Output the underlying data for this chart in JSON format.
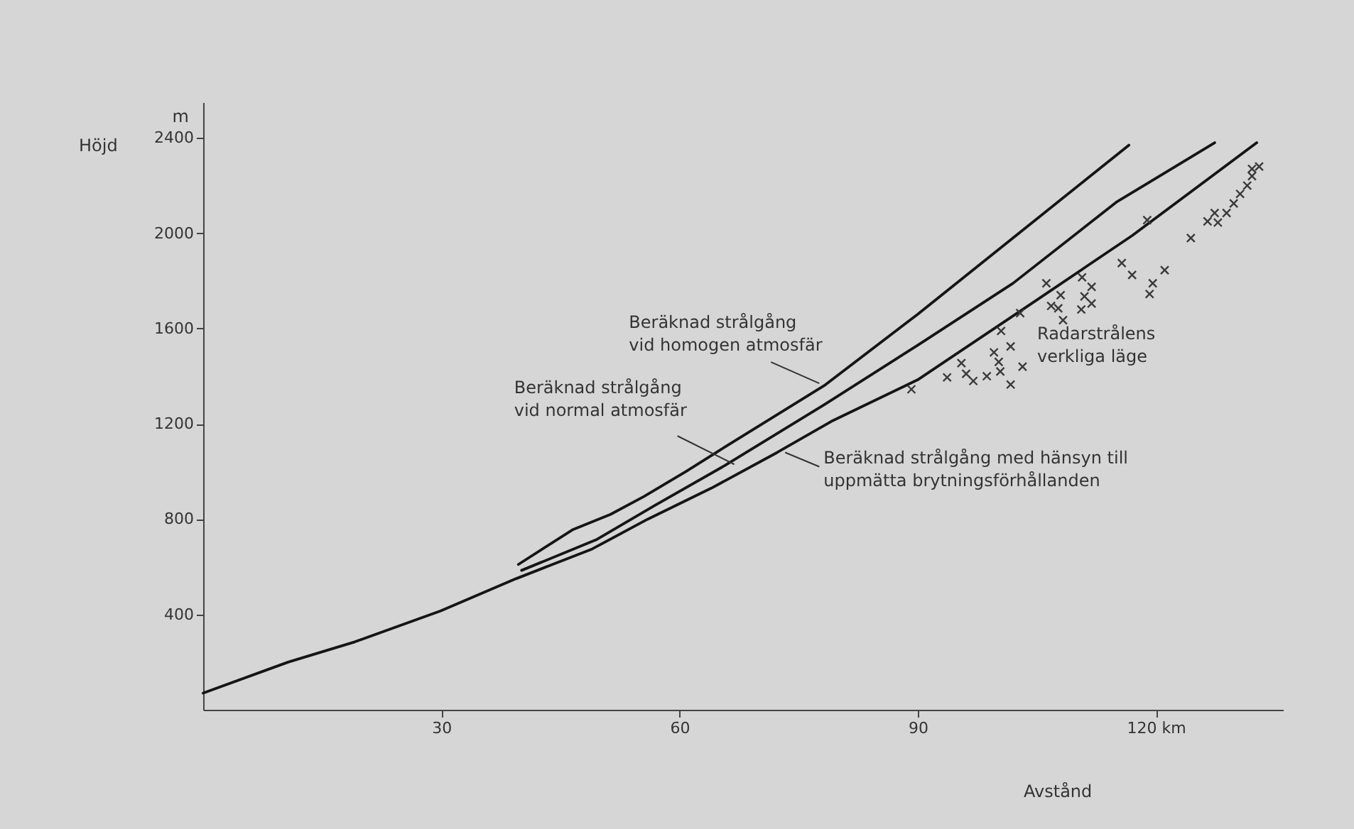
{
  "chart_data": {
    "type": "line",
    "xlabel": "Avstånd",
    "ylabel": "Höjd",
    "xlim": [
      0,
      136
    ],
    "ylim": [
      0,
      2550
    ],
    "xticks": [
      30,
      60,
      90,
      {
        "value": 120,
        "label": "120  km"
      }
    ],
    "yticks": [
      400,
      800,
      1200,
      1600,
      2000,
      2400
    ],
    "grid": false,
    "line_style": "solid",
    "series": [
      {
        "color": "#151515",
        "x": [
          39.7,
          46.5,
          51.3,
          55.5,
          60.8,
          65.1,
          78.2,
          90,
          102,
          116.6
        ],
        "values": [
          610,
          755,
          820,
          895,
          1000,
          1090,
          1360,
          1660,
          1980,
          2370
        ]
      },
      {
        "color": "#151515",
        "x": [
          40.1,
          49.6,
          57,
          65.7,
          78.2,
          90,
          102,
          115,
          127.4
        ],
        "values": [
          585,
          715,
          860,
          1025,
          1280,
          1530,
          1790,
          2130,
          2380
        ]
      },
      {
        "color": "#151515",
        "x": [
          0,
          10.7,
          19.1,
          29.9,
          39.4,
          44,
          49,
          56,
          64,
          72.3,
          79.1,
          90,
          105,
          117,
          132.7
        ],
        "values": [
          70,
          200,
          285,
          415,
          550,
          610,
          675,
          800,
          930,
          1080,
          1210,
          1385,
          1720,
          1990,
          2380
        ]
      },
      {
        "type": "scatter",
        "marker": "cross",
        "color": "#3a3a3a",
        "x": [
          89.2,
          93.7,
          95.5,
          96.1,
          97,
          98.7,
          99.6,
          100.2,
          100.4,
          100.5,
          101.7,
          101.7,
          103.2,
          102.9,
          106.2,
          106.8,
          107.7,
          108,
          108.3,
          110.7,
          111,
          111.9,
          111.9,
          110.6,
          115.7,
          117,
          121.1,
          119.6,
          119.2,
          118.9,
          124.4,
          126.5,
          127.8,
          127.4,
          128.9,
          129.8,
          130.6,
          131.5,
          132.1,
          132.1,
          133
        ],
        "values": [
          1345,
          1395,
          1455,
          1410,
          1380,
          1400,
          1500,
          1460,
          1420,
          1590,
          1525,
          1365,
          1440,
          1665,
          1790,
          1695,
          1685,
          1740,
          1635,
          1815,
          1735,
          1775,
          1705,
          1680,
          1875,
          1825,
          1845,
          1790,
          1745,
          2055,
          1980,
          2050,
          2045,
          2085,
          2085,
          2125,
          2165,
          2200,
          2240,
          2270,
          2280
        ]
      }
    ],
    "annotations": [
      {
        "text": "Beräknad strålgång\nvid homogen atmosfär",
        "x": 77.6,
        "y": 1370
      },
      {
        "text": "Beräknad strålgång\nvid normal atmosfär",
        "x": 66.9,
        "y": 1030
      },
      {
        "text": "Beräknad strålgång med hänsyn till\nuppmätta brytningsförhållanden",
        "x": 73.3,
        "y": 1080
      },
      "Radarstrålens\nverkliga läge",
      "m"
    ]
  }
}
